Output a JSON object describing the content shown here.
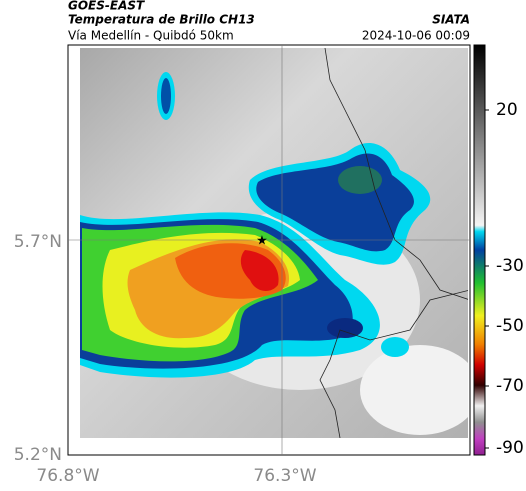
{
  "header": {
    "title": "GOES-EAST",
    "subtitle": "Temperatura de Brillo CH13",
    "route": "Vía Medellín - Quibdó 50km",
    "source": "SIATA",
    "timestamp": "2024-10-06 00:09"
  },
  "map": {
    "lat_ticks": [
      "5.7°N",
      "5.2°N"
    ],
    "lon_ticks": [
      "76.8°W",
      "76.3°W"
    ]
  },
  "colorbar": {
    "ticks": [
      "20",
      "-30",
      "-50",
      "-70",
      "-90"
    ]
  }
}
